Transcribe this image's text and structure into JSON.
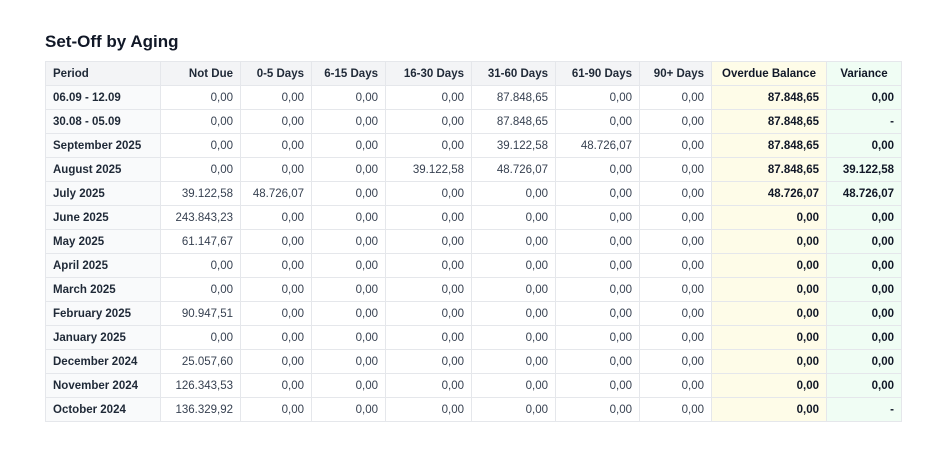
{
  "title": "Set-Off by Aging",
  "columns": [
    "Period",
    "Not Due",
    "0-5 Days",
    "6-15 Days",
    "16-30 Days",
    "31-60 Days",
    "61-90 Days",
    "90+ Days",
    "Overdue Balance",
    "Variance"
  ],
  "colors": {
    "header_bg": "#f3f4f6",
    "overdue_bg": "#fefce8",
    "variance_bg": "#f0fdf4"
  },
  "rows": [
    [
      "06.09 - 12.09",
      "0,00",
      "0,00",
      "0,00",
      "0,00",
      "87.848,65",
      "0,00",
      "0,00",
      "87.848,65",
      "0,00"
    ],
    [
      "30.08 - 05.09",
      "0,00",
      "0,00",
      "0,00",
      "0,00",
      "87.848,65",
      "0,00",
      "0,00",
      "87.848,65",
      "-"
    ],
    [
      "September 2025",
      "0,00",
      "0,00",
      "0,00",
      "0,00",
      "39.122,58",
      "48.726,07",
      "0,00",
      "87.848,65",
      "0,00"
    ],
    [
      "August 2025",
      "0,00",
      "0,00",
      "0,00",
      "39.122,58",
      "48.726,07",
      "0,00",
      "0,00",
      "87.848,65",
      "39.122,58"
    ],
    [
      "July 2025",
      "39.122,58",
      "48.726,07",
      "0,00",
      "0,00",
      "0,00",
      "0,00",
      "0,00",
      "48.726,07",
      "48.726,07"
    ],
    [
      "June 2025",
      "243.843,23",
      "0,00",
      "0,00",
      "0,00",
      "0,00",
      "0,00",
      "0,00",
      "0,00",
      "0,00"
    ],
    [
      "May 2025",
      "61.147,67",
      "0,00",
      "0,00",
      "0,00",
      "0,00",
      "0,00",
      "0,00",
      "0,00",
      "0,00"
    ],
    [
      "April 2025",
      "0,00",
      "0,00",
      "0,00",
      "0,00",
      "0,00",
      "0,00",
      "0,00",
      "0,00",
      "0,00"
    ],
    [
      "March 2025",
      "0,00",
      "0,00",
      "0,00",
      "0,00",
      "0,00",
      "0,00",
      "0,00",
      "0,00",
      "0,00"
    ],
    [
      "February 2025",
      "90.947,51",
      "0,00",
      "0,00",
      "0,00",
      "0,00",
      "0,00",
      "0,00",
      "0,00",
      "0,00"
    ],
    [
      "January 2025",
      "0,00",
      "0,00",
      "0,00",
      "0,00",
      "0,00",
      "0,00",
      "0,00",
      "0,00",
      "0,00"
    ],
    [
      "December 2024",
      "25.057,60",
      "0,00",
      "0,00",
      "0,00",
      "0,00",
      "0,00",
      "0,00",
      "0,00",
      "0,00"
    ],
    [
      "November 2024",
      "126.343,53",
      "0,00",
      "0,00",
      "0,00",
      "0,00",
      "0,00",
      "0,00",
      "0,00",
      "0,00"
    ],
    [
      "October 2024",
      "136.329,92",
      "0,00",
      "0,00",
      "0,00",
      "0,00",
      "0,00",
      "0,00",
      "0,00",
      "-"
    ]
  ]
}
